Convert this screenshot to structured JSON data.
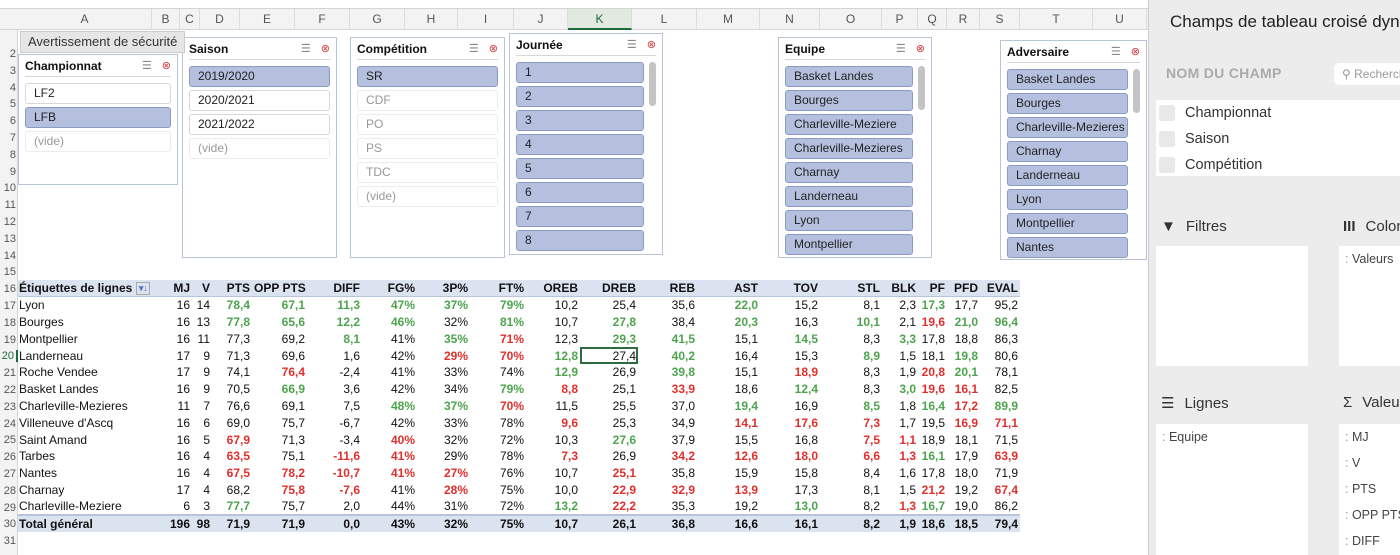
{
  "tooltip": "Avertissement de sécurité",
  "columns": [
    "A",
    "B",
    "C",
    "D",
    "E",
    "F",
    "G",
    "H",
    "I",
    "J",
    "K",
    "L",
    "M",
    "N",
    "O",
    "P",
    "Q",
    "R",
    "S",
    "T",
    "U"
  ],
  "active_column": "K",
  "active_row": "20",
  "slicers": [
    {
      "title": "Championnat",
      "items": [
        {
          "label": "LF2",
          "state": "normal"
        },
        {
          "label": "LFB",
          "state": "on"
        },
        {
          "label": "(vide)",
          "state": "dim"
        }
      ]
    },
    {
      "title": "Saison",
      "items": [
        {
          "label": "2019/2020",
          "state": "on"
        },
        {
          "label": "2020/2021",
          "state": "normal"
        },
        {
          "label": "2021/2022",
          "state": "normal"
        },
        {
          "label": "(vide)",
          "state": "dim"
        }
      ]
    },
    {
      "title": "Compétition",
      "items": [
        {
          "label": "SR",
          "state": "on"
        },
        {
          "label": "CDF",
          "state": "dim"
        },
        {
          "label": "PO",
          "state": "dim"
        },
        {
          "label": "PS",
          "state": "dim"
        },
        {
          "label": "TDC",
          "state": "dim"
        },
        {
          "label": "(vide)",
          "state": "dim"
        }
      ]
    },
    {
      "title": "Journée",
      "items": [
        {
          "label": "1",
          "state": "on"
        },
        {
          "label": "2",
          "state": "on"
        },
        {
          "label": "3",
          "state": "on"
        },
        {
          "label": "4",
          "state": "on"
        },
        {
          "label": "5",
          "state": "on"
        },
        {
          "label": "6",
          "state": "on"
        },
        {
          "label": "7",
          "state": "on"
        },
        {
          "label": "8",
          "state": "on"
        }
      ]
    },
    {
      "title": "Equipe",
      "items": [
        {
          "label": "Basket Landes",
          "state": "on"
        },
        {
          "label": "Bourges",
          "state": "on"
        },
        {
          "label": "Charleville-Meziere",
          "state": "on"
        },
        {
          "label": "Charleville-Mezieres",
          "state": "on"
        },
        {
          "label": "Charnay",
          "state": "on"
        },
        {
          "label": "Landerneau",
          "state": "on"
        },
        {
          "label": "Lyon",
          "state": "on"
        },
        {
          "label": "Montpellier",
          "state": "on"
        }
      ]
    },
    {
      "title": "Adversaire",
      "items": [
        {
          "label": "Basket Landes",
          "state": "on"
        },
        {
          "label": "Bourges",
          "state": "on"
        },
        {
          "label": "Charleville-Mezieres",
          "state": "on"
        },
        {
          "label": "Charnay",
          "state": "on"
        },
        {
          "label": "Landerneau",
          "state": "on"
        },
        {
          "label": "Lyon",
          "state": "on"
        },
        {
          "label": "Montpellier",
          "state": "on"
        },
        {
          "label": "Nantes",
          "state": "on"
        }
      ]
    }
  ],
  "pivot": {
    "headers": [
      "Étiquettes de lignes",
      "MJ",
      "V",
      "PTS",
      "OPP PTS",
      "DIFF",
      "FG%",
      "3P%",
      "FT%",
      "OREB",
      "DREB",
      "REB",
      "AST",
      "TOV",
      "STL",
      "BLK",
      "PF",
      "PFD",
      "EVAL"
    ],
    "rows": [
      {
        "cells": [
          "Lyon",
          "16",
          "14",
          "78,4",
          "67,1",
          "11,3",
          "47%",
          "37%",
          "79%",
          "10,2",
          "25,4",
          "35,6",
          "22,0",
          "15,2",
          "8,1",
          "2,3",
          "17,3",
          "17,7",
          "95,2"
        ],
        "colors": "...gggggg...g...g..g"
      },
      {
        "cells": [
          "Bourges",
          "16",
          "13",
          "77,8",
          "65,6",
          "12,2",
          "46%",
          "32%",
          "81%",
          "10,7",
          "27,8",
          "38,4",
          "20,3",
          "16,3",
          "10,1",
          "2,1",
          "19,6",
          "21,0",
          "96,4"
        ],
        "colors": "...gggg.g.g.g.g.rgg"
      },
      {
        "cells": [
          "Montpellier",
          "16",
          "11",
          "77,3",
          "69,2",
          "8,1",
          "41%",
          "35%",
          "71%",
          "12,3",
          "29,3",
          "41,5",
          "15,1",
          "14,5",
          "8,3",
          "3,3",
          "17,8",
          "18,8",
          "86,3"
        ],
        "colors": ".....g.gr.gg.g.g..."
      },
      {
        "cells": [
          "Landerneau",
          "17",
          "9",
          "71,3",
          "69,6",
          "1,6",
          "42%",
          "29%",
          "70%",
          "12,8",
          "27,4",
          "40,2",
          "16,4",
          "15,3",
          "8,9",
          "1,5",
          "18,1",
          "19,8",
          "80,6"
        ],
        "colors": ".......rrg.g..g..g."
      },
      {
        "cells": [
          "Roche Vendee",
          "17",
          "9",
          "74,1",
          "76,4",
          "-2,4",
          "41%",
          "33%",
          "74%",
          "12,9",
          "26,9",
          "39,8",
          "15,1",
          "18,9",
          "8,3",
          "1,9",
          "20,8",
          "20,1",
          "78,1"
        ],
        "colors": "....r....g.g.r..rg."
      },
      {
        "cells": [
          "Basket Landes",
          "16",
          "9",
          "70,5",
          "66,9",
          "3,6",
          "42%",
          "34%",
          "79%",
          "8,8",
          "25,1",
          "33,9",
          "18,6",
          "12,4",
          "8,3",
          "3,0",
          "19,6",
          "16,1",
          "82,5"
        ],
        "colors": "....g...gr.r.g.grr."
      },
      {
        "cells": [
          "Charleville-Mezieres",
          "11",
          "7",
          "76,6",
          "69,1",
          "7,5",
          "48%",
          "37%",
          "70%",
          "11,5",
          "25,5",
          "37,0",
          "19,4",
          "16,9",
          "8,5",
          "1,8",
          "16,4",
          "17,2",
          "89,9"
        ],
        "colors": "......ggr...g.g.grg"
      },
      {
        "cells": [
          "Villeneuve d'Ascq",
          "16",
          "6",
          "69,0",
          "75,7",
          "-6,7",
          "42%",
          "33%",
          "78%",
          "9,6",
          "25,3",
          "34,9",
          "14,1",
          "17,6",
          "7,3",
          "1,7",
          "19,5",
          "16,9",
          "71,1"
        ],
        "colors": ".........r..rrr..rr"
      },
      {
        "cells": [
          "Saint Amand",
          "16",
          "5",
          "67,9",
          "71,3",
          "-3,4",
          "40%",
          "32%",
          "72%",
          "10,3",
          "27,6",
          "37,9",
          "15,5",
          "16,8",
          "7,5",
          "1,1",
          "18,9",
          "18,1",
          "71,5"
        ],
        "colors": "...r..r...g...rr..."
      },
      {
        "cells": [
          "Tarbes",
          "16",
          "4",
          "63,5",
          "75,1",
          "-11,6",
          "41%",
          "29%",
          "78%",
          "7,3",
          "26,9",
          "34,2",
          "12,6",
          "18,0",
          "6,6",
          "1,3",
          "16,1",
          "17,9",
          "63,9"
        ],
        "colors": "...r.rr..r.rrrrrg.r"
      },
      {
        "cells": [
          "Nantes",
          "16",
          "4",
          "67,5",
          "78,2",
          "-10,7",
          "41%",
          "27%",
          "76%",
          "10,7",
          "25,1",
          "35,8",
          "15,9",
          "15,8",
          "8,4",
          "1,6",
          "17,8",
          "18,0",
          "71,9"
        ],
        "colors": "...rrrrr..r........"
      },
      {
        "cells": [
          "Charnay",
          "17",
          "4",
          "68,2",
          "75,8",
          "-7,6",
          "41%",
          "28%",
          "75%",
          "10,0",
          "22,9",
          "32,9",
          "13,9",
          "17,3",
          "8,1",
          "1,5",
          "21,2",
          "19,2",
          "67,4"
        ],
        "colors": "....rr.r..rrr...r.r"
      },
      {
        "cells": [
          "Charleville-Meziere",
          "6",
          "3",
          "77,7",
          "75,7",
          "2,0",
          "44%",
          "31%",
          "72%",
          "13,2",
          "22,2",
          "35,3",
          "19,2",
          "13,0",
          "8,2",
          "1,3",
          "16,7",
          "19,0",
          "86,2"
        ],
        "colors": "...g.....gr..g.rg.."
      }
    ],
    "total": [
      "Total général",
      "196",
      "98",
      "71,9",
      "71,9",
      "0,0",
      "43%",
      "32%",
      "75%",
      "10,7",
      "26,1",
      "36,8",
      "16,6",
      "16,1",
      "8,2",
      "1,9",
      "18,6",
      "18,5",
      "79,4"
    ]
  },
  "panel": {
    "title": "Champs de tableau croisé dynamique",
    "field_name_label": "NOM DU CHAMP",
    "search_placeholder": "Rechercher",
    "fields": [
      "Championnat",
      "Saison",
      "Compétition"
    ],
    "filters_label": "Filtres",
    "columns_label": "Colonnes",
    "columns_items": [
      "Valeurs"
    ],
    "rows_label": "Lignes",
    "rows_items": [
      "Equipe"
    ],
    "values_label": "Valeurs",
    "values_items": [
      "MJ",
      "V",
      "PTS",
      "OPP PTS",
      "DIFF"
    ]
  }
}
